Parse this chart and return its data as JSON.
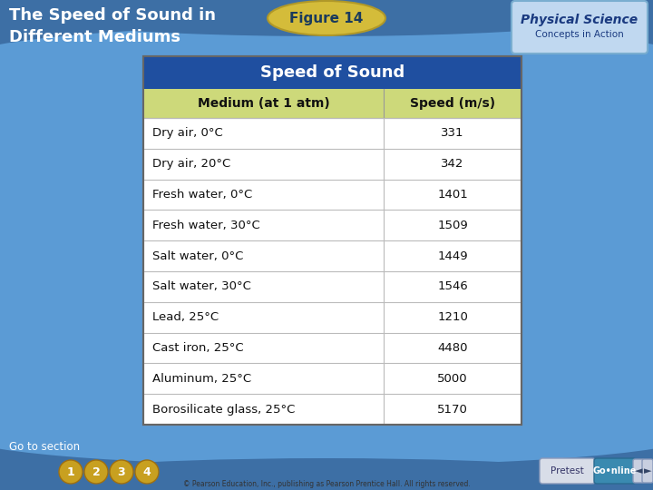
{
  "title_left": "The Speed of Sound in\nDifferent Mediums",
  "figure_label": "Figure 14",
  "table_title": "Speed of Sound",
  "col_headers": [
    "Medium (at 1 atm)",
    "Speed (m/s)"
  ],
  "rows": [
    [
      "Dry air, 0°C",
      "331"
    ],
    [
      "Dry air, 20°C",
      "342"
    ],
    [
      "Fresh water, 0°C",
      "1401"
    ],
    [
      "Fresh water, 30°C",
      "1509"
    ],
    [
      "Salt water, 0°C",
      "1449"
    ],
    [
      "Salt water, 30°C",
      "1546"
    ],
    [
      "Lead, 25°C",
      "1210"
    ],
    [
      "Cast iron, 25°C",
      "4480"
    ],
    [
      "Aluminum, 25°C",
      "5000"
    ],
    [
      "Borosilicate glass, 25°C",
      "5170"
    ]
  ],
  "bg_color": "#5b9bd5",
  "bg_top_dark": "#3a6fa0",
  "bg_bottom_dark": "#3a6fa0",
  "table_header_bg": "#1f4fa0",
  "table_subheader_bg": "#cdd97a",
  "table_row_white": "#ffffff",
  "table_border_color": "#aaaaaa",
  "title_color": "#ffffff",
  "figure_label_color": "#1a3a5c",
  "figure_label_bg": "#d4bc3a",
  "go_to_section_color": "#ffffff",
  "footer_color": "#555555",
  "nav_circle_color": "#c8a020",
  "pretest_bg": "#d8dde8",
  "go_online_bg": "#3a8ab0"
}
